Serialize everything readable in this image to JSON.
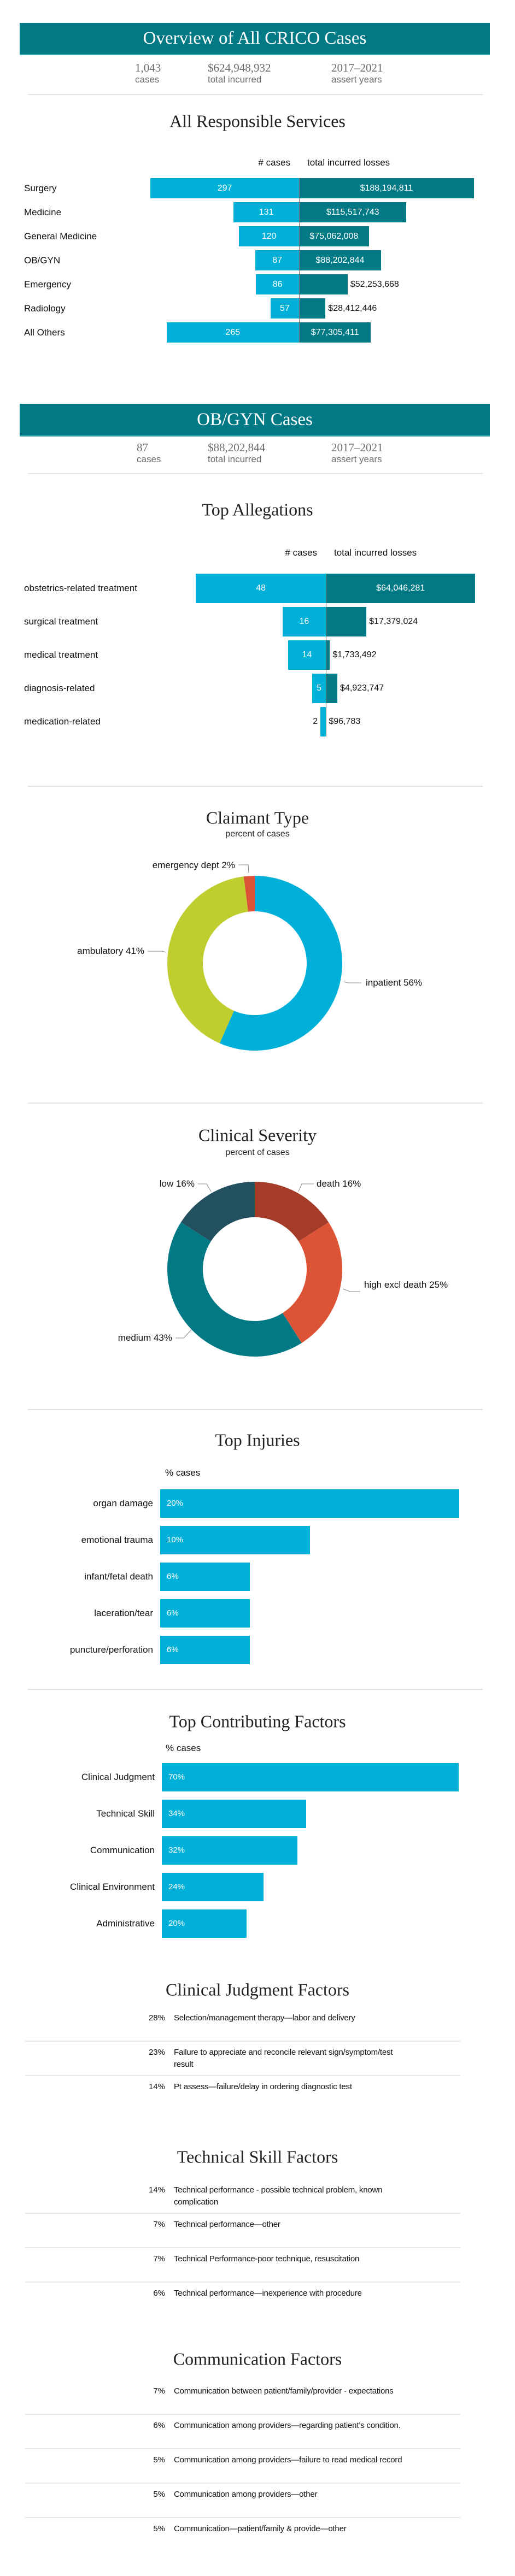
{
  "overview": {
    "title": "Overview of All CRICO Cases",
    "stats": [
      {
        "value": "1,043",
        "label": "cases"
      },
      {
        "value": "$624,948,932",
        "label": "total incurred"
      },
      {
        "value": "2017–2021",
        "label": "assert years"
      }
    ]
  },
  "obgyn": {
    "title": "OB/GYN Cases",
    "stats": [
      {
        "value": "87",
        "label": "cases"
      },
      {
        "value": "$88,202,844",
        "label": "total incurred"
      },
      {
        "value": "2017–2021",
        "label": "assert years"
      }
    ]
  },
  "colors": {
    "header_band": "#027a86",
    "cases_bar": "#00b0d8",
    "losses_bar": "#027a86"
  },
  "chart_data": [
    {
      "type": "bar",
      "orientation": "diverging-horizontal",
      "title": "All Responsible Services",
      "categories": [
        "Surgery",
        "Medicine",
        "General Medicine",
        "OB/GYN",
        "Emergency",
        "Radiology",
        "All Others"
      ],
      "series": [
        {
          "name": "# cases",
          "color": "#00b0d8",
          "values": [
            297,
            131,
            120,
            87,
            86,
            57,
            265
          ],
          "labels": [
            "297",
            "131",
            "120",
            "87",
            "86",
            "57",
            "265"
          ]
        },
        {
          "name": "total incurred losses",
          "color": "#027a86",
          "values": [
            188194811,
            115517743,
            75062008,
            88202844,
            52253668,
            28412446,
            77305411
          ],
          "labels": [
            "$188,194,811",
            "$115,517,743",
            "$75,062,008",
            "$88,202,844",
            "$52,253,668",
            "$28,412,446",
            "$77,305,411"
          ]
        }
      ]
    },
    {
      "type": "bar",
      "orientation": "diverging-horizontal",
      "title": "Top Allegations",
      "categories": [
        "obstetrics-related treatment",
        "surgical treatment",
        "medical treatment",
        "diagnosis-related",
        "medication-related"
      ],
      "series": [
        {
          "name": "# cases",
          "color": "#00b0d8",
          "values": [
            48,
            16,
            14,
            5,
            2
          ],
          "labels": [
            "48",
            "16",
            "14",
            "5",
            "2"
          ]
        },
        {
          "name": "total incurred losses",
          "color": "#027a86",
          "values": [
            64046281,
            17379024,
            1733492,
            4923747,
            96783
          ],
          "labels": [
            "$64,046,281",
            "$17,379,024",
            "$1,733,492",
            "$4,923,747",
            "$96,783"
          ]
        }
      ]
    },
    {
      "type": "pie",
      "style": "donut",
      "title": "Claimant Type",
      "subtitle": "percent of cases",
      "slices": [
        {
          "label": "inpatient 56%",
          "value": 56,
          "color": "#00b0d8"
        },
        {
          "label": "ambulatory 41%",
          "value": 41,
          "color": "#bfcd2f"
        },
        {
          "label": "emergency dept 2%",
          "value": 2,
          "color": "#dc5236"
        }
      ]
    },
    {
      "type": "pie",
      "style": "donut",
      "title": "Clinical Severity",
      "subtitle": "percent of cases",
      "slices": [
        {
          "label": "death 16%",
          "value": 16,
          "color": "#a53c29"
        },
        {
          "label": "high excl death 25%",
          "value": 25,
          "color": "#dd5336"
        },
        {
          "label": "medium 43%",
          "value": 43,
          "color": "#027a86"
        },
        {
          "label": "low 16%",
          "value": 16,
          "color": "#23505f"
        }
      ]
    },
    {
      "type": "bar",
      "orientation": "horizontal",
      "title": "Top Injuries",
      "column_header": "% cases",
      "categories": [
        "organ damage",
        "emotional trauma",
        "infant/fetal death",
        "laceration/tear",
        "puncture/perforation"
      ],
      "values": [
        20,
        10,
        6,
        6,
        6
      ],
      "labels": [
        "20%",
        "10%",
        "6%",
        "6%",
        "6%"
      ],
      "color": "#00b0d8"
    },
    {
      "type": "bar",
      "orientation": "horizontal",
      "title": "Top Contributing Factors",
      "column_header": "% cases",
      "categories": [
        "Clinical Judgment",
        "Technical Skill",
        "Communication",
        "Clinical Environment",
        "Administrative"
      ],
      "values": [
        70,
        34,
        32,
        24,
        20
      ],
      "labels": [
        "70%",
        "34%",
        "32%",
        "24%",
        "20%"
      ],
      "color": "#00b0d8"
    }
  ],
  "factor_lists": [
    {
      "title": "Clinical Judgment Factors",
      "items": [
        {
          "pct": "28%",
          "text": "Selection/management therapy—labor and delivery"
        },
        {
          "pct": "23%",
          "text": "Failure to appreciate and reconcile relevant sign/symptom/test result"
        },
        {
          "pct": "14%",
          "text": "Pt assess—failure/delay in ordering diagnostic test"
        }
      ]
    },
    {
      "title": "Technical Skill Factors",
      "items": [
        {
          "pct": "14%",
          "text": "Technical performance - possible technical problem, known complication"
        },
        {
          "pct": "7%",
          "text": "Technical performance—other"
        },
        {
          "pct": "7%",
          "text": "Technical Performance-poor technique, resuscitation"
        },
        {
          "pct": "6%",
          "text": "Technical performance—inexperience with procedure"
        }
      ]
    },
    {
      "title": "Communication Factors",
      "items": [
        {
          "pct": "7%",
          "text": "Communication between patient/family/provider - expectations"
        },
        {
          "pct": "6%",
          "text": "Communication among providers—regarding patient’s condition."
        },
        {
          "pct": "5%",
          "text": "Communication among providers—failure to read medical record"
        },
        {
          "pct": "5%",
          "text": "Communication among providers—other"
        },
        {
          "pct": "5%",
          "text": "Communication—patient/family & provide—other"
        }
      ]
    }
  ]
}
